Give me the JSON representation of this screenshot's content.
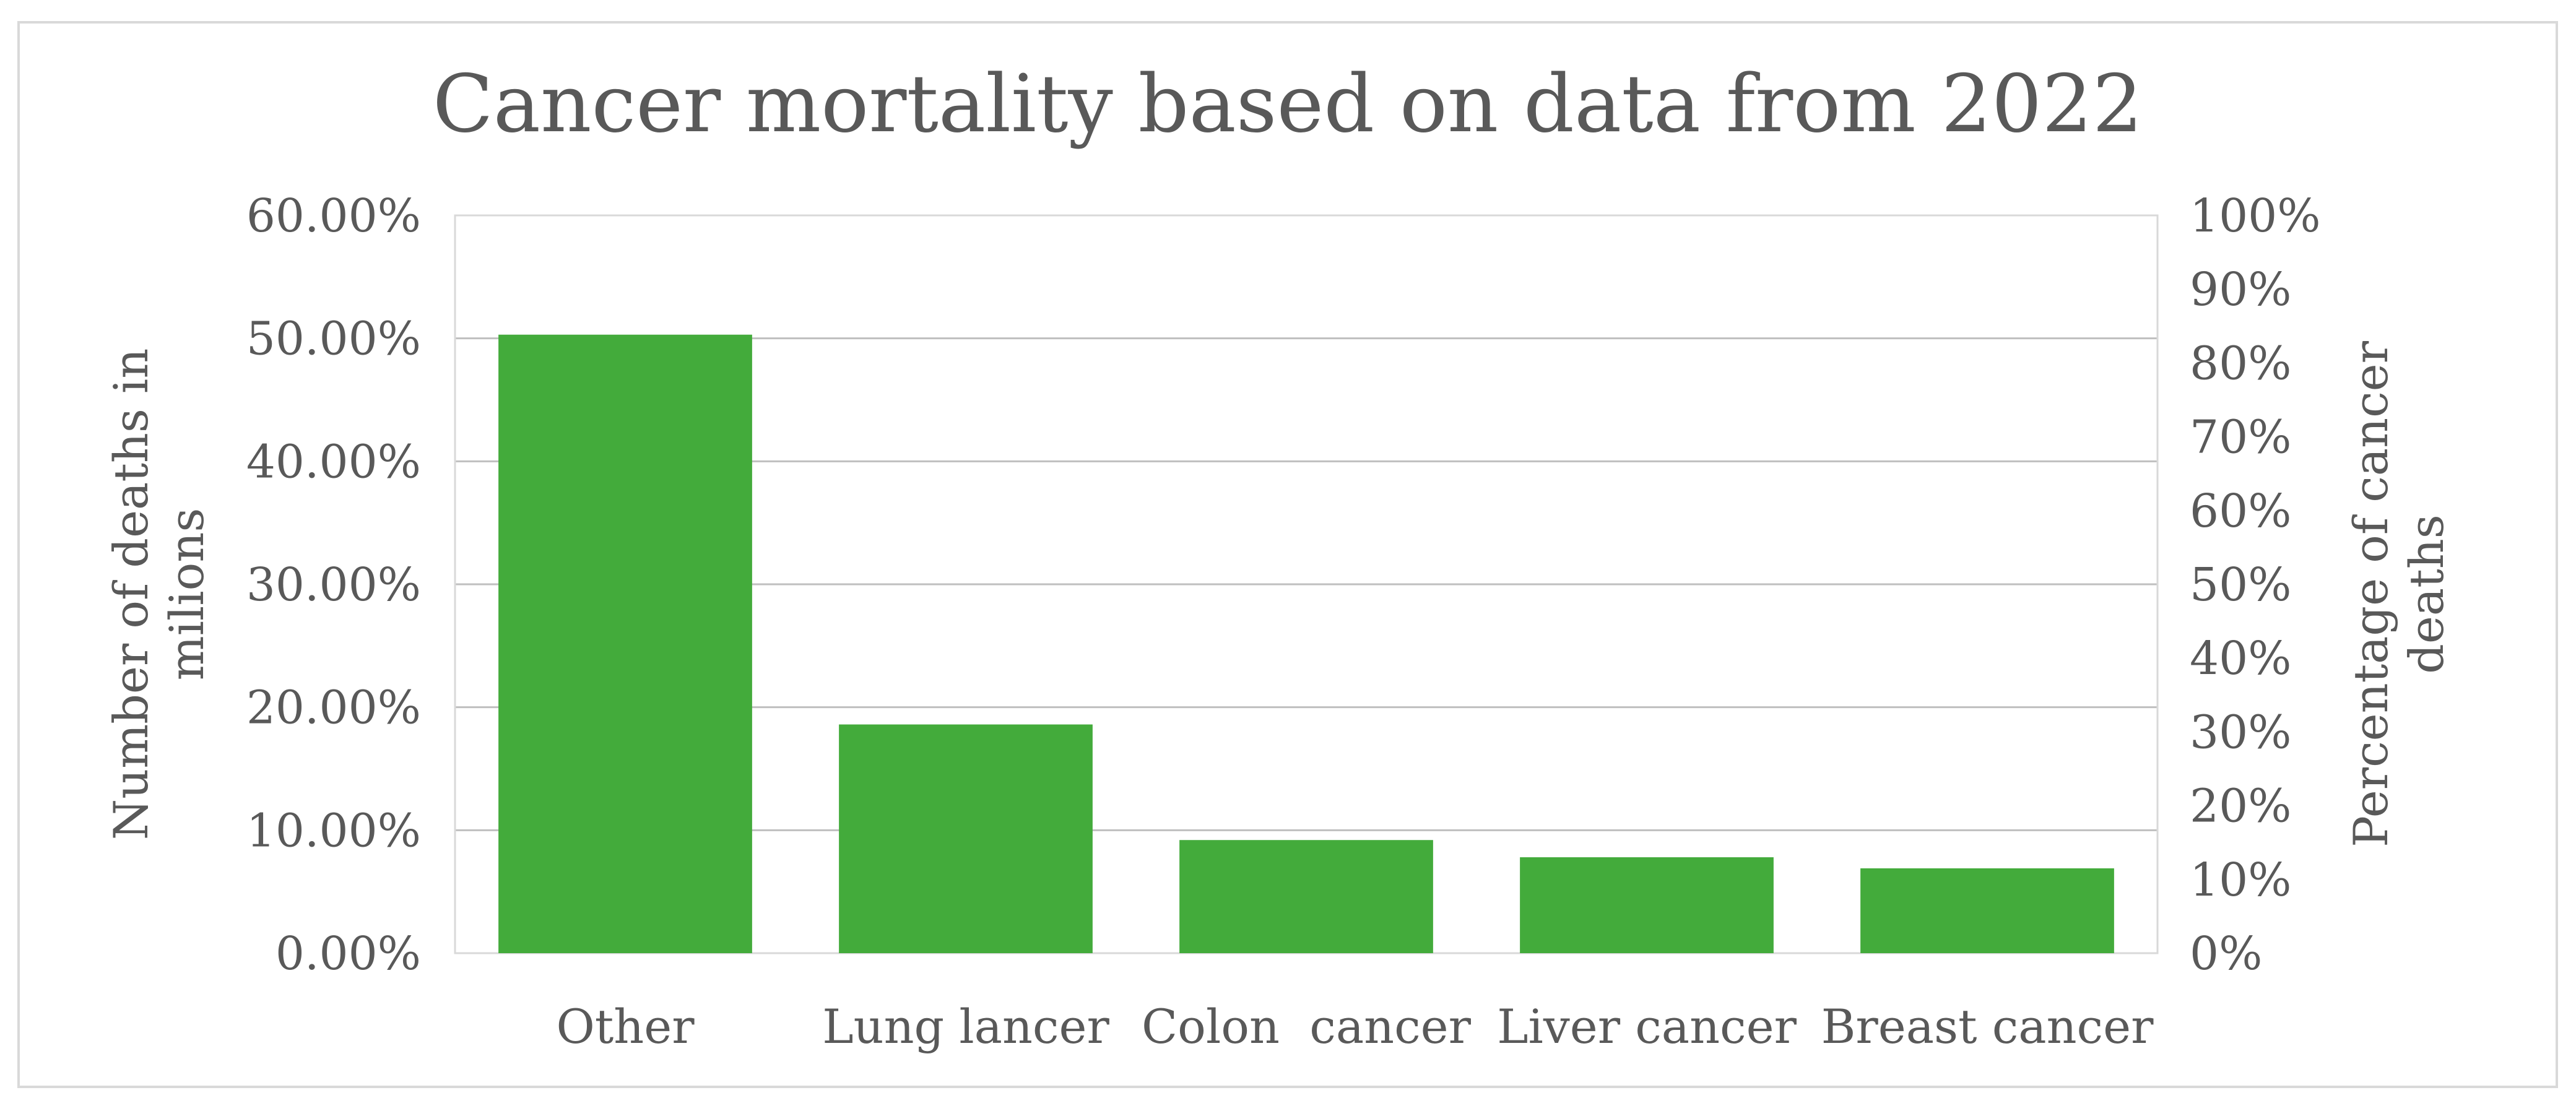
{
  "chart_data": {
    "type": "bar",
    "title": "Cancer mortality based on data from 2022",
    "categories": [
      "Other",
      "Lung lancer",
      "Colon  cancer",
      "Liver cancer",
      "Breast cancer"
    ],
    "series": [
      {
        "values": [
          50.3,
          18.6,
          9.2,
          7.8,
          6.9
        ],
        "color": "#43ab3b"
      }
    ],
    "ylabel": "Number of deaths in milions",
    "ylabel_lines": [
      "Number of deaths in",
      "milions"
    ],
    "y2label": "Percentage of cancer deaths",
    "y2label_lines": [
      "Percentage of cancer",
      "deaths"
    ],
    "ylim": [
      0,
      60
    ],
    "y2lim": [
      0,
      100
    ],
    "yticks": [
      "0.00%",
      "10.00%",
      "20.00%",
      "30.00%",
      "40.00%",
      "50.00%",
      "60.00%"
    ],
    "y2ticks": [
      "0%",
      "10%",
      "20%",
      "30%",
      "40%",
      "50%",
      "60%",
      "70%",
      "80%",
      "90%",
      "100%"
    ],
    "grid": true,
    "legend": "none"
  }
}
